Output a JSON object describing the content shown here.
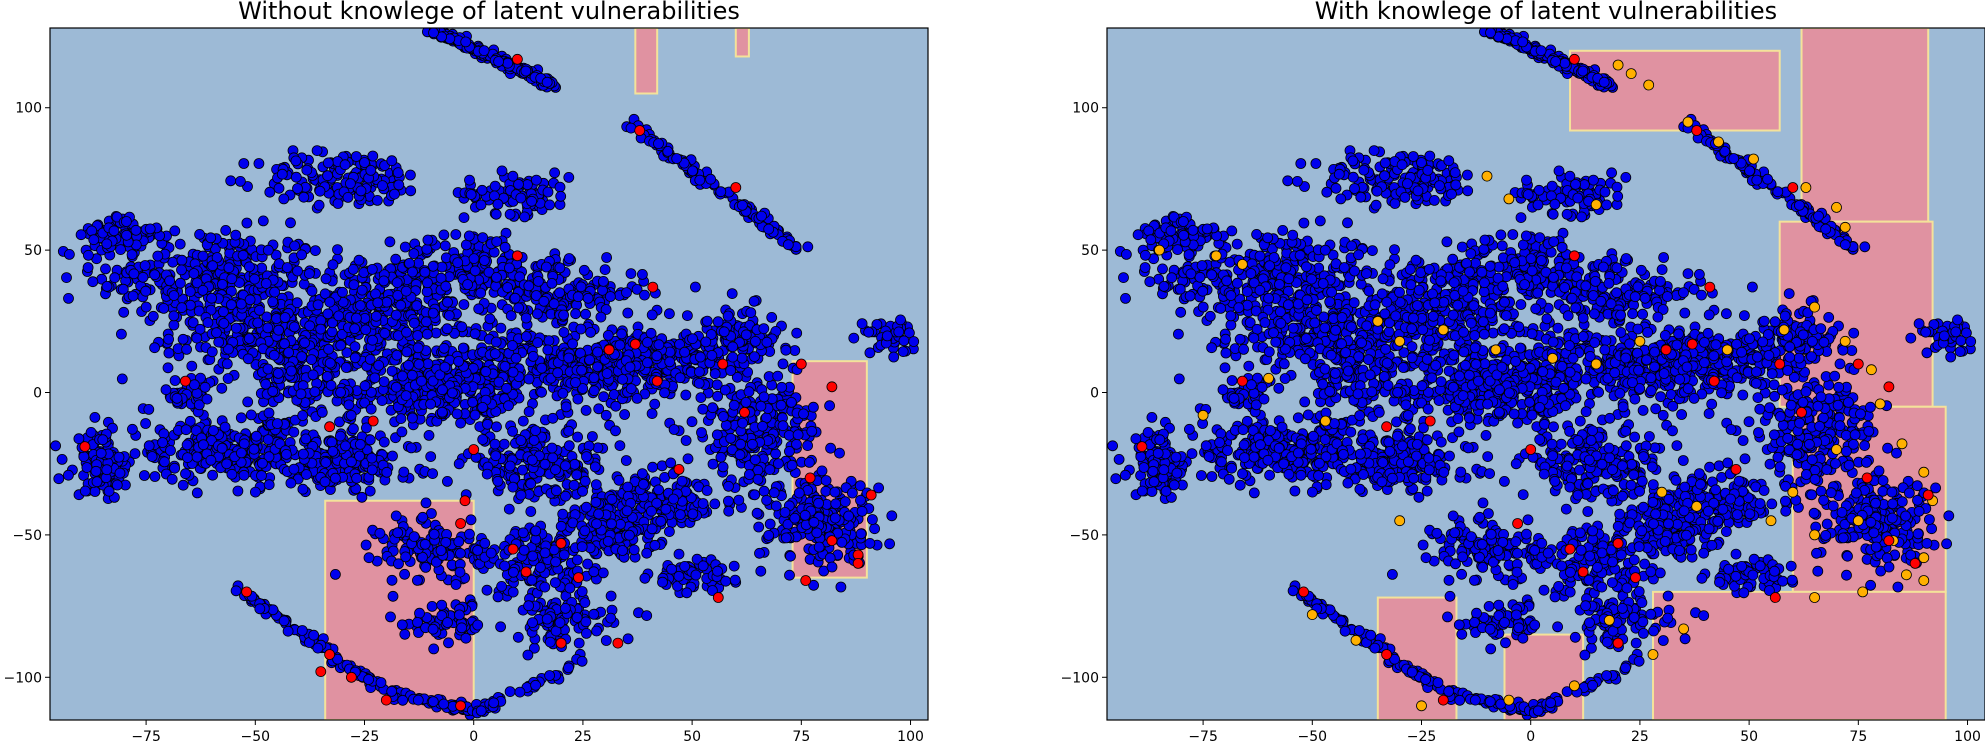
{
  "chart_data": [
    {
      "type": "scatter",
      "title": "Without knowlege of latent vulnerabilities",
      "xlabel": "",
      "ylabel": "",
      "xlim": [
        -97,
        104
      ],
      "ylim": [
        -115,
        128
      ],
      "xticks": [
        -75,
        -50,
        -25,
        0,
        25,
        50,
        75,
        100
      ],
      "yticks": [
        -100,
        -50,
        0,
        50,
        100
      ],
      "tick_labels_x": [
        "−75",
        "−50",
        "−25",
        "0",
        "25",
        "50",
        "75",
        "100"
      ],
      "tick_labels_y": [
        "−100",
        "−50",
        "0",
        "50",
        "100"
      ],
      "grid": false,
      "background_color": "#9dbad6",
      "region_color": "#e092a1",
      "region_edge_color": "#f4e29a",
      "regions": [
        {
          "x": [
            73,
            90
          ],
          "y": [
            -65,
            11
          ]
        },
        {
          "x": [
            -34,
            0
          ],
          "y": [
            -115,
            -38
          ]
        },
        {
          "x": [
            37,
            42
          ],
          "y": [
            105,
            128
          ]
        },
        {
          "x": [
            60,
            63
          ],
          "y": [
            118,
            128
          ]
        }
      ],
      "point_color": "#0000ee",
      "highlight_color": "#ff0000",
      "highlight_points": [
        {
          "x": 10,
          "y": 117
        },
        {
          "x": 38,
          "y": 92
        },
        {
          "x": 60,
          "y": 72
        },
        {
          "x": 10,
          "y": 48
        },
        {
          "x": 41,
          "y": 37
        },
        {
          "x": 31,
          "y": 15
        },
        {
          "x": 37,
          "y": 17
        },
        {
          "x": 57,
          "y": 10
        },
        {
          "x": 75,
          "y": 10
        },
        {
          "x": 42,
          "y": 4
        },
        {
          "x": 82,
          "y": 2
        },
        {
          "x": 62,
          "y": -7
        },
        {
          "x": -66,
          "y": 4
        },
        {
          "x": -33,
          "y": -12
        },
        {
          "x": -23,
          "y": -10
        },
        {
          "x": -89,
          "y": -19
        },
        {
          "x": 0,
          "y": -20
        },
        {
          "x": 47,
          "y": -27
        },
        {
          "x": 77,
          "y": -30
        },
        {
          "x": 91,
          "y": -36
        },
        {
          "x": -2,
          "y": -38
        },
        {
          "x": -3,
          "y": -46
        },
        {
          "x": 20,
          "y": -53
        },
        {
          "x": 9,
          "y": -55
        },
        {
          "x": 82,
          "y": -52
        },
        {
          "x": 88,
          "y": -57
        },
        {
          "x": 88,
          "y": -60
        },
        {
          "x": 12,
          "y": -63
        },
        {
          "x": 24,
          "y": -65
        },
        {
          "x": 76,
          "y": -66
        },
        {
          "x": 56,
          "y": -72
        },
        {
          "x": -52,
          "y": -70
        },
        {
          "x": -33,
          "y": -92
        },
        {
          "x": -35,
          "y": -98
        },
        {
          "x": 20,
          "y": -88
        },
        {
          "x": 33,
          "y": -88
        },
        {
          "x": -28,
          "y": -100
        },
        {
          "x": -20,
          "y": -108
        },
        {
          "x": -3,
          "y": -110
        }
      ]
    },
    {
      "type": "scatter",
      "title": "With knowlege of latent vulnerabilities",
      "xlabel": "",
      "ylabel": "",
      "xlim": [
        -97,
        104
      ],
      "ylim": [
        -115,
        128
      ],
      "xticks": [
        -75,
        -50,
        -25,
        0,
        25,
        50,
        75,
        100
      ],
      "yticks": [
        -100,
        -50,
        0,
        50,
        100
      ],
      "tick_labels_x": [
        "−75",
        "−50",
        "−25",
        "0",
        "25",
        "50",
        "75",
        "100"
      ],
      "tick_labels_y": [
        "−100",
        "−50",
        "0",
        "50",
        "100"
      ],
      "grid": false,
      "background_color": "#9dbad6",
      "region_color": "#e092a1",
      "region_edge_color": "#f4e29a",
      "regions": [
        {
          "x": [
            9,
            57
          ],
          "y": [
            92,
            120
          ]
        },
        {
          "x": [
            62,
            91
          ],
          "y": [
            60,
            128
          ]
        },
        {
          "x": [
            57,
            92
          ],
          "y": [
            -5,
            60
          ]
        },
        {
          "x": [
            60,
            95
          ],
          "y": [
            -70,
            -5
          ]
        },
        {
          "x": [
            28,
            95
          ],
          "y": [
            -115,
            -70
          ]
        },
        {
          "x": [
            -35,
            -17
          ],
          "y": [
            -115,
            -72
          ]
        },
        {
          "x": [
            -6,
            12
          ],
          "y": [
            -115,
            -85
          ]
        }
      ],
      "point_color": "#0000ee",
      "highlight_color": "#ff0000",
      "secondary_color": "#ffb000",
      "highlight_points": [
        {
          "x": 10,
          "y": 117
        },
        {
          "x": 38,
          "y": 92
        },
        {
          "x": 60,
          "y": 72
        },
        {
          "x": 10,
          "y": 48
        },
        {
          "x": 41,
          "y": 37
        },
        {
          "x": 31,
          "y": 15
        },
        {
          "x": 37,
          "y": 17
        },
        {
          "x": 57,
          "y": 10
        },
        {
          "x": 75,
          "y": 10
        },
        {
          "x": 42,
          "y": 4
        },
        {
          "x": 82,
          "y": 2
        },
        {
          "x": 62,
          "y": -7
        },
        {
          "x": -66,
          "y": 4
        },
        {
          "x": -33,
          "y": -12
        },
        {
          "x": -23,
          "y": -10
        },
        {
          "x": -89,
          "y": -19
        },
        {
          "x": 0,
          "y": -20
        },
        {
          "x": 47,
          "y": -27
        },
        {
          "x": 77,
          "y": -30
        },
        {
          "x": 91,
          "y": -36
        },
        {
          "x": -3,
          "y": -46
        },
        {
          "x": 20,
          "y": -53
        },
        {
          "x": 9,
          "y": -55
        },
        {
          "x": 82,
          "y": -52
        },
        {
          "x": 88,
          "y": -60
        },
        {
          "x": 12,
          "y": -63
        },
        {
          "x": 24,
          "y": -65
        },
        {
          "x": 56,
          "y": -72
        },
        {
          "x": -52,
          "y": -70
        },
        {
          "x": -33,
          "y": -92
        },
        {
          "x": 20,
          "y": -88
        },
        {
          "x": -20,
          "y": -108
        }
      ],
      "secondary_points": [
        {
          "x": 20,
          "y": 115
        },
        {
          "x": 23,
          "y": 112
        },
        {
          "x": 27,
          "y": 108
        },
        {
          "x": 36,
          "y": 95
        },
        {
          "x": 43,
          "y": 88
        },
        {
          "x": 51,
          "y": 82
        },
        {
          "x": 63,
          "y": 72
        },
        {
          "x": 70,
          "y": 65
        },
        {
          "x": 72,
          "y": 58
        },
        {
          "x": -10,
          "y": 76
        },
        {
          "x": -5,
          "y": 68
        },
        {
          "x": 15,
          "y": 66
        },
        {
          "x": -72,
          "y": 48
        },
        {
          "x": -85,
          "y": 50
        },
        {
          "x": -66,
          "y": 45
        },
        {
          "x": -35,
          "y": 25
        },
        {
          "x": -30,
          "y": 18
        },
        {
          "x": -20,
          "y": 22
        },
        {
          "x": -8,
          "y": 15
        },
        {
          "x": 5,
          "y": 12
        },
        {
          "x": 15,
          "y": 10
        },
        {
          "x": 25,
          "y": 18
        },
        {
          "x": 45,
          "y": 15
        },
        {
          "x": 58,
          "y": 22
        },
        {
          "x": 65,
          "y": 30
        },
        {
          "x": 72,
          "y": 18
        },
        {
          "x": 78,
          "y": 8
        },
        {
          "x": 80,
          "y": -4
        },
        {
          "x": 85,
          "y": -18
        },
        {
          "x": 70,
          "y": -20
        },
        {
          "x": 60,
          "y": -35
        },
        {
          "x": 65,
          "y": -50
        },
        {
          "x": 55,
          "y": -45
        },
        {
          "x": 75,
          "y": -45
        },
        {
          "x": 83,
          "y": -52
        },
        {
          "x": 90,
          "y": -58
        },
        {
          "x": 90,
          "y": -66
        },
        {
          "x": 86,
          "y": -64
        },
        {
          "x": 92,
          "y": -38
        },
        {
          "x": 90,
          "y": -28
        },
        {
          "x": 76,
          "y": -70
        },
        {
          "x": 65,
          "y": -72
        },
        {
          "x": -75,
          "y": -8
        },
        {
          "x": -47,
          "y": -10
        },
        {
          "x": -60,
          "y": 5
        },
        {
          "x": -30,
          "y": -45
        },
        {
          "x": 30,
          "y": -35
        },
        {
          "x": 38,
          "y": -40
        },
        {
          "x": -50,
          "y": -78
        },
        {
          "x": -40,
          "y": -87
        },
        {
          "x": -25,
          "y": -110
        },
        {
          "x": -5,
          "y": -108
        },
        {
          "x": 10,
          "y": -103
        },
        {
          "x": 28,
          "y": -92
        },
        {
          "x": 35,
          "y": -83
        },
        {
          "x": 18,
          "y": -80
        }
      ]
    }
  ]
}
